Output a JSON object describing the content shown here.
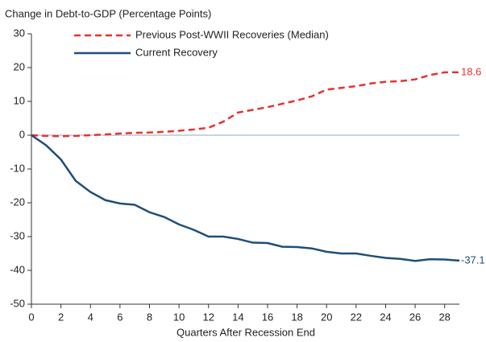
{
  "chart_data": {
    "type": "line",
    "title": "Change in Debt-to-GDP (Percentage Points)",
    "xlabel": "Quarters After Recession End",
    "x": [
      0,
      1,
      2,
      3,
      4,
      5,
      6,
      7,
      8,
      9,
      10,
      11,
      12,
      13,
      14,
      15,
      16,
      17,
      18,
      19,
      20,
      21,
      22,
      23,
      24,
      25,
      26,
      27,
      28,
      29
    ],
    "series": [
      {
        "name": "Previous Post-WWII Recoveries (Median)",
        "color": "#e8312f",
        "dashed": true,
        "values": [
          0,
          -0.2,
          -0.3,
          -0.2,
          0,
          0.2,
          0.5,
          0.7,
          0.8,
          1,
          1.3,
          1.7,
          2.2,
          4,
          6.7,
          7.5,
          8.3,
          9.3,
          10.3,
          11.5,
          13.5,
          14,
          14.5,
          15.3,
          15.8,
          16,
          16.5,
          17.8,
          18.6,
          18.6
        ]
      },
      {
        "name": "Current Recovery",
        "color": "#1f4e79",
        "dashed": false,
        "values": [
          0,
          -3,
          -7.2,
          -13.5,
          -16.8,
          -19.2,
          -20.2,
          -20.6,
          -22.8,
          -24.2,
          -26.4,
          -28,
          -30,
          -30,
          -30.7,
          -31.8,
          -31.9,
          -33,
          -33.1,
          -33.5,
          -34.5,
          -35,
          -35,
          -35.7,
          -36.3,
          -36.6,
          -37.2,
          -36.7,
          -36.8,
          -37.1
        ]
      }
    ],
    "xlim": [
      0,
      29
    ],
    "xticks": [
      0,
      2,
      4,
      6,
      8,
      10,
      12,
      14,
      16,
      18,
      20,
      22,
      24,
      26,
      28
    ],
    "ylim": [
      -50,
      30
    ],
    "yticks": [
      -50,
      -40,
      -30,
      -20,
      -10,
      0,
      10,
      20,
      30
    ],
    "grid": false
  }
}
